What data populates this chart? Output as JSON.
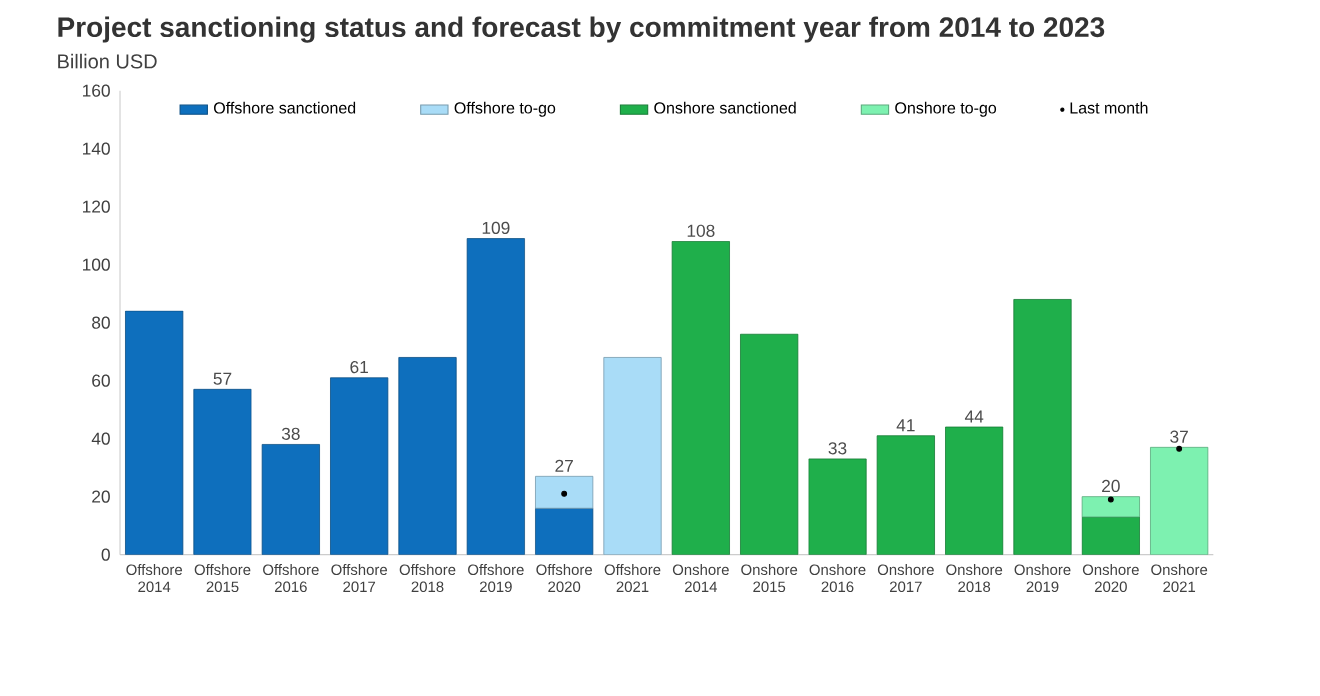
{
  "chart_data": {
    "type": "bar",
    "title": "Project sanctioning status and forecast by commitment year from 2014 to 2023",
    "subtitle": "Billion USD",
    "categories": [
      "Offshore 2014",
      "Offshore 2015",
      "Offshore 2016",
      "Offshore 2017",
      "Offshore 2018",
      "Offshore 2019",
      "Offshore 2020",
      "Offshore 2021",
      "Onshore 2014",
      "Onshore 2015",
      "Onshore 2016",
      "Onshore 2017",
      "Onshore 2018",
      "Onshore 2019",
      "Onshore 2020",
      "Onshore 2021"
    ],
    "stacked": true,
    "ylim": [
      0,
      160
    ],
    "yticks": [
      0,
      20,
      40,
      60,
      80,
      100,
      120,
      140,
      160
    ],
    "legend": "top",
    "grid": false,
    "series": [
      {
        "name": "Offshore sanctioned",
        "color": "#0e6fbd",
        "values": [
          84,
          57,
          38,
          61,
          68,
          109,
          16,
          null,
          null,
          null,
          null,
          null,
          null,
          null,
          null,
          null
        ]
      },
      {
        "name": "Offshore to-go",
        "color": "#a9dcf7",
        "values": [
          null,
          null,
          null,
          null,
          null,
          null,
          11,
          68,
          null,
          null,
          null,
          null,
          null,
          null,
          null,
          null
        ]
      },
      {
        "name": "Onshore sanctioned",
        "color": "#1faf4b",
        "values": [
          null,
          null,
          null,
          null,
          null,
          null,
          null,
          null,
          108,
          76,
          33,
          41,
          44,
          88,
          13,
          null
        ]
      },
      {
        "name": "Onshore to-go",
        "color": "#7df1b0",
        "values": [
          null,
          null,
          null,
          null,
          null,
          null,
          null,
          null,
          null,
          null,
          null,
          null,
          null,
          null,
          7,
          37
        ]
      },
      {
        "name": "Last month",
        "type": "scatter",
        "color": "#000000",
        "marker": "circle",
        "values": [
          null,
          null,
          null,
          null,
          null,
          null,
          21,
          null,
          null,
          null,
          null,
          null,
          null,
          null,
          19,
          36.5
        ]
      }
    ],
    "totals": [
      null,
      "57",
      "38",
      "61",
      null,
      "109",
      "27",
      null,
      "108",
      null,
      "33",
      "41",
      "44",
      null,
      "20",
      "37"
    ]
  }
}
